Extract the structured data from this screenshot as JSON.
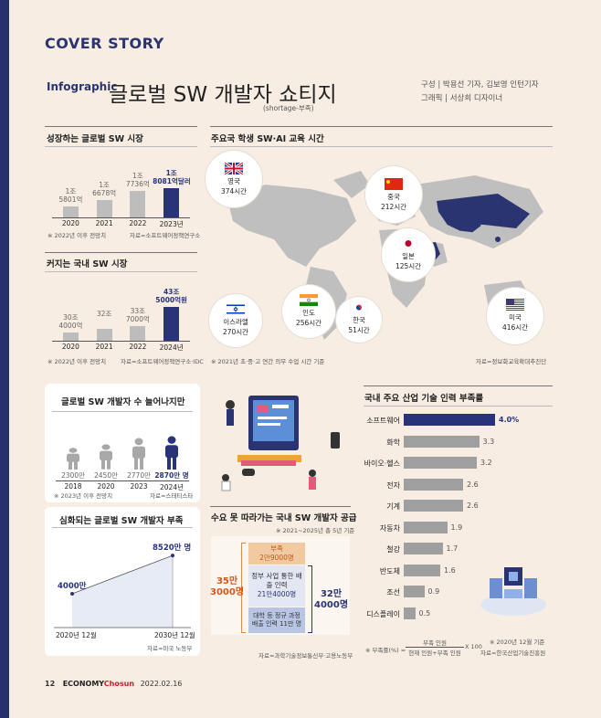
{
  "header": {
    "section": "COVER STORY",
    "tag": "Infographic",
    "title": "글로벌 SW 개발자 쇼티지",
    "subtitle": "(shortage-부족)",
    "credit_1": "구성  | 박용선 기자, 김보영 인턴기자",
    "credit_2": "그래픽 | 서상희 디자이너"
  },
  "footer": {
    "page": "12",
    "brand": "ECONOMY",
    "brand_2": "Chosun",
    "date": "2022.02.16"
  },
  "colors": {
    "accent": "#28337a",
    "bar": "#bdbdbd",
    "background": "#f7ede3"
  },
  "chart_data": [
    {
      "id": "global-sw-market",
      "type": "bar",
      "title": "성장하는 글로벌 SW 시장",
      "categories": [
        "2020",
        "2021",
        "2022",
        "2023년"
      ],
      "values": [
        15801,
        16678,
        17736,
        18081
      ],
      "value_labels": [
        "1조\n5801억",
        "1조\n6678억",
        "1조\n7736억",
        "1조\n8081억달러"
      ],
      "ylim": [
        0,
        19000
      ],
      "highlight": 3,
      "note": "※ 2022년 이후 전망치",
      "source": "자료=소프트웨어정책연구소"
    },
    {
      "id": "domestic-sw-market",
      "type": "bar",
      "title": "커지는 국내 SW 시장",
      "categories": [
        "2020",
        "2021",
        "2022",
        "2024년"
      ],
      "values": [
        304000,
        320000,
        337000,
        435000
      ],
      "value_labels": [
        "30조\n4000억",
        "32조",
        "33조\n7000억",
        "43조\n5000억원"
      ],
      "ylim": [
        0,
        450000
      ],
      "highlight": 3,
      "note": "※ 2022년 이후 전망치",
      "source": "자료=소프트웨어정책연구소·IDC"
    },
    {
      "id": "sw-ai-education-hours",
      "type": "table",
      "title": "주요국 학생 SW·AI 교육 시간",
      "rows": [
        {
          "flag": "gb",
          "country": "영국",
          "hours": "374시간"
        },
        {
          "flag": "cn",
          "country": "중국",
          "hours": "212시간"
        },
        {
          "flag": "jp",
          "country": "일본",
          "hours": "125시간"
        },
        {
          "flag": "il",
          "country": "이스라엘",
          "hours": "270시간"
        },
        {
          "flag": "in",
          "country": "인도",
          "hours": "256시간"
        },
        {
          "flag": "kr",
          "country": "한국",
          "hours": "51시간"
        },
        {
          "flag": "us",
          "country": "미국",
          "hours": "416시간"
        }
      ],
      "note": "※ 2021년 초·중·고 연간 의무 수업 시간 기준",
      "source": "자료=정보화교육확대추진단"
    },
    {
      "id": "global-dev-count",
      "type": "bar",
      "title": "글로벌 SW 개발자 수 늘어나지만",
      "categories": [
        "2018",
        "2020",
        "2023",
        "2024년"
      ],
      "values": [
        2300,
        2450,
        2770,
        2870
      ],
      "value_labels": [
        "2300만",
        "2450만",
        "2770만",
        "2870만 명"
      ],
      "highlight": 3,
      "note": "※ 2023년 이후 전망치",
      "source": "자료=스태티스타"
    },
    {
      "id": "global-dev-shortage",
      "type": "line",
      "title": "심화되는 글로벌 SW 개발자 부족",
      "x": [
        "2020년 12월",
        "2030년 12월"
      ],
      "values": [
        4000,
        8520
      ],
      "value_labels": [
        "4000만",
        "8520만 명"
      ],
      "ylim": [
        0,
        9500
      ],
      "source": "자료=미국 노동부"
    },
    {
      "id": "domestic-dev-supply",
      "type": "table",
      "title": "수요 못 따라가는 국내 SW 개발자 공급",
      "note": "※ 2021~2025년 총 5년 기준",
      "demand_label": "35만\n3000명",
      "supply_label": "32만\n4000명",
      "segments": [
        {
          "label": "부족",
          "value": "2만9000명"
        },
        {
          "label": "정부 사업 통한 배출 인력",
          "value": "21만4000명"
        },
        {
          "label": "대학 등 정규 과정 배출 인력 11만 명",
          "value": ""
        }
      ],
      "source": "자료=과학기술정보통신부·고용노동부"
    },
    {
      "id": "industry-shortage-rate",
      "type": "bar",
      "title": "국내 주요 산업 기술 인력 부족률",
      "categories": [
        "소프트웨어",
        "화학",
        "바이오·헬스",
        "전자",
        "기계",
        "자동차",
        "철강",
        "반도체",
        "조선",
        "디스플레이"
      ],
      "values": [
        4.0,
        3.3,
        3.2,
        2.6,
        2.6,
        1.9,
        1.7,
        1.6,
        0.9,
        0.5
      ],
      "value_labels": [
        "4.0%",
        "3.3",
        "3.2",
        "2.6",
        "2.6",
        "1.9",
        "1.7",
        "1.6",
        "0.9",
        "0.5"
      ],
      "xlim": [
        0,
        4.0
      ],
      "highlight": 0,
      "note": "※ 2020년 12월 기준",
      "formula_lead": "※ 부족률(%) =",
      "formula_num": "부족 인원",
      "formula_den": "현재 인원+부족 인원",
      "formula_mult": "X 100",
      "source": "자료=한국산업기술진흥원"
    }
  ],
  "text": {
    "source_global": "자료=소프트웨어정책연구소"
  }
}
